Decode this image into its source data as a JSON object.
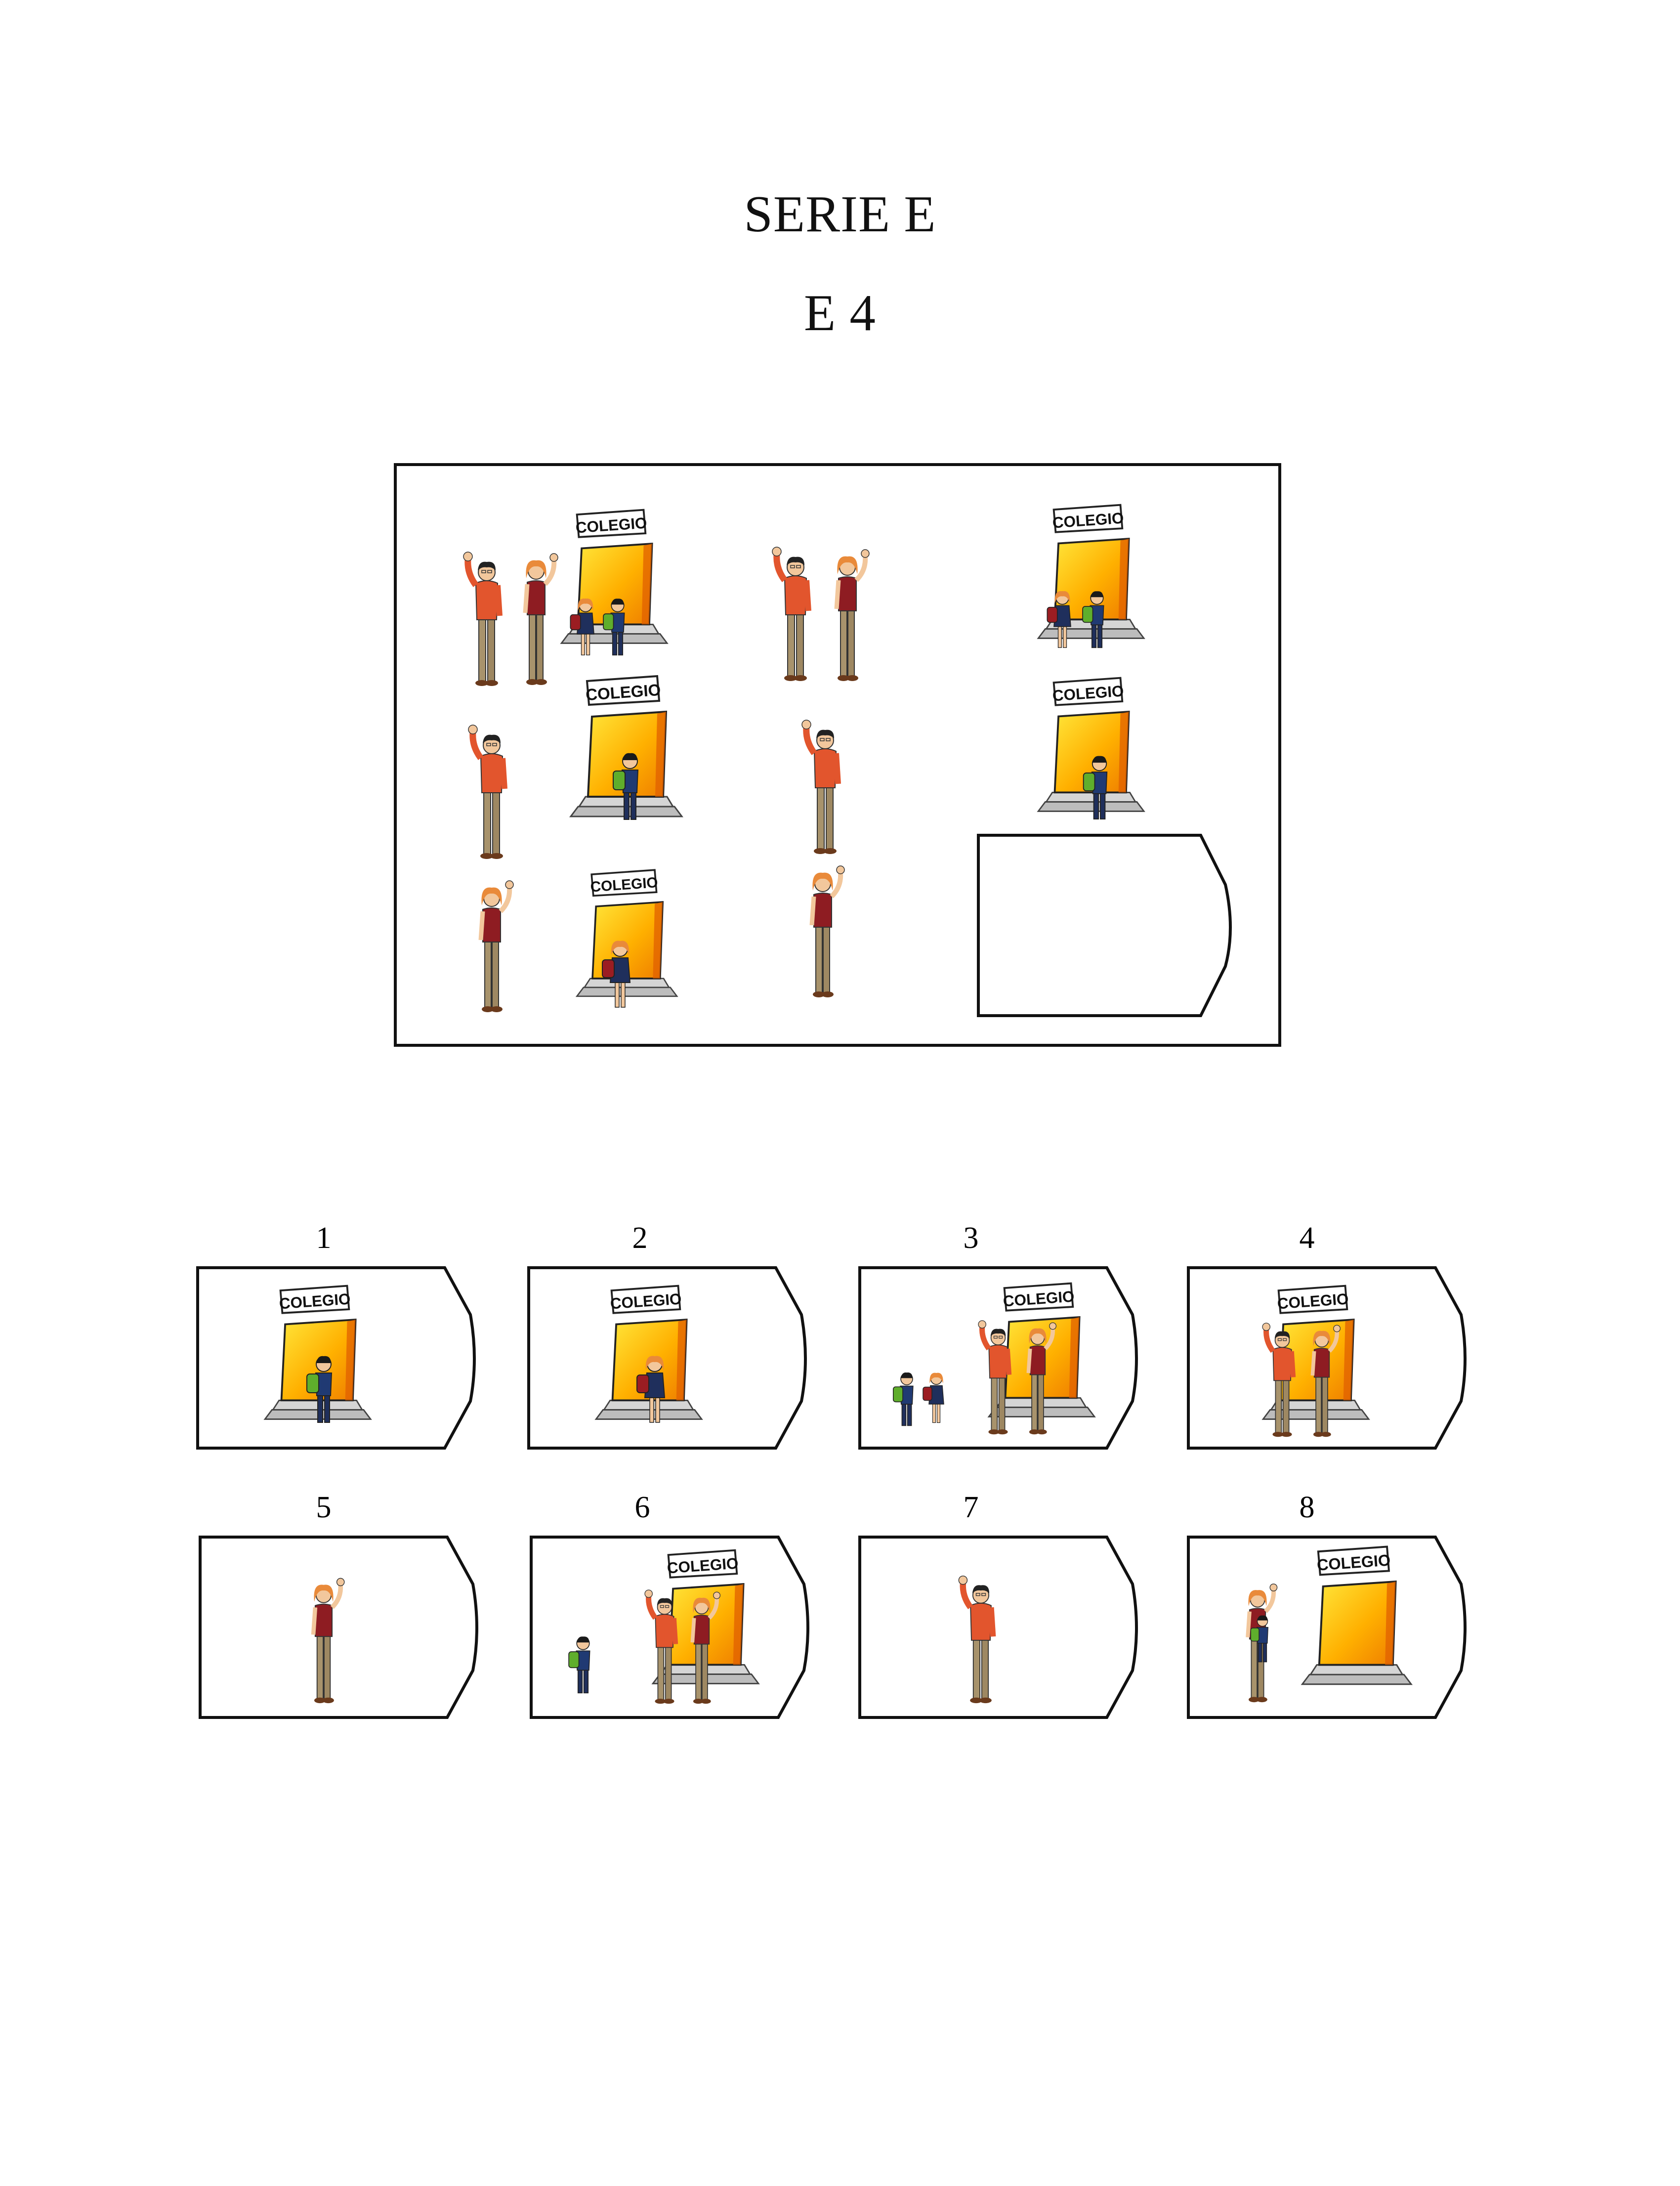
{
  "header": {
    "series": "SERIE E",
    "item": "E 4"
  },
  "sign_text": "COLEGIO",
  "options": [
    {
      "number": "1",
      "content": "boy entering school"
    },
    {
      "number": "2",
      "content": "girl entering school"
    },
    {
      "number": "3",
      "content": "children and parents at school"
    },
    {
      "number": "4",
      "content": "parents entering school"
    },
    {
      "number": "5",
      "content": "mother waving"
    },
    {
      "number": "6",
      "content": "boy and parents at school"
    },
    {
      "number": "7",
      "content": "father waving"
    },
    {
      "number": "8",
      "content": "mother carrying child near school"
    }
  ],
  "colors": {
    "door_light": "#ffe63a",
    "door_dark": "#f08a00",
    "shirt_red": "#e2552d",
    "dress_maroon": "#8e1c22",
    "pants_khaki": "#a8936c",
    "outline": "#111111"
  }
}
